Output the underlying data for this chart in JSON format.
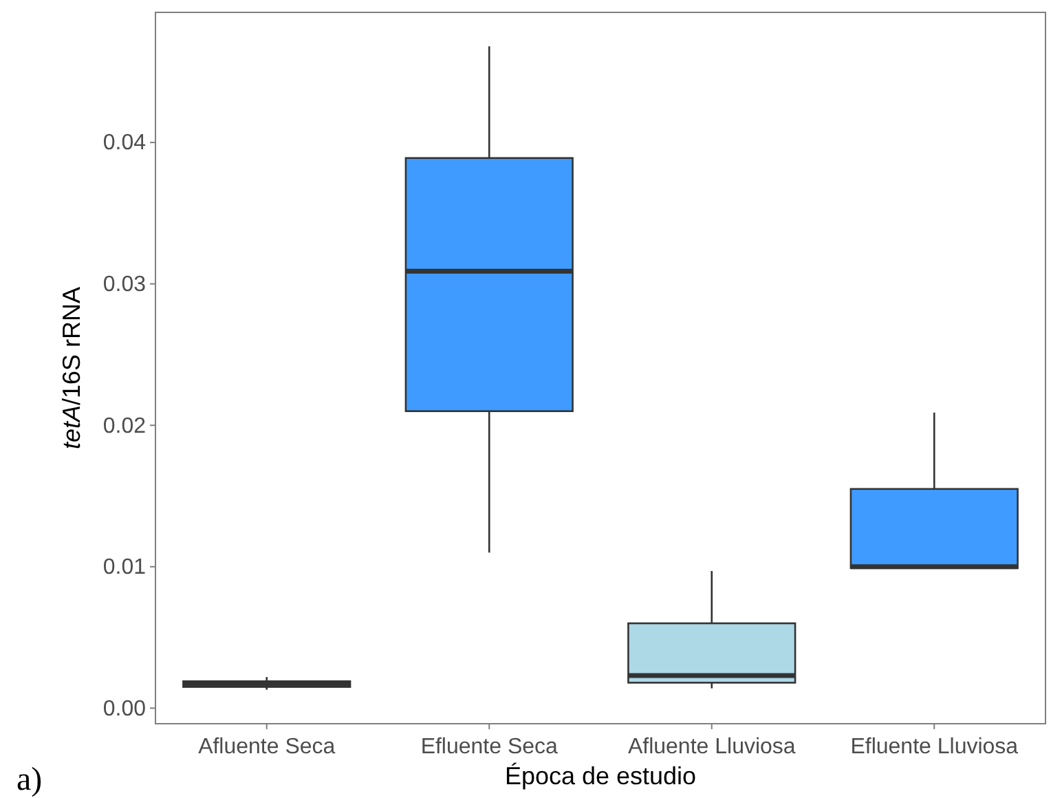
{
  "chart_data": {
    "type": "box",
    "xlabel": "Época de estudio",
    "ylabel": "tetA/16S rRNA",
    "categories": [
      "Afluente Seca",
      "Efluente Seca",
      "Afluente Lluviosa",
      "Efluente Lluviosa"
    ],
    "boxes": [
      {
        "low": 0.0013,
        "q1": 0.0015,
        "median": 0.0017,
        "q3": 0.0019,
        "high": 0.0022
      },
      {
        "low": 0.011,
        "q1": 0.021,
        "median": 0.0309,
        "q3": 0.0389,
        "high": 0.0468
      },
      {
        "low": 0.0014,
        "q1": 0.0018,
        "median": 0.0023,
        "q3": 0.006,
        "high": 0.0097
      },
      {
        "low": 0.0099,
        "q1": 0.0099,
        "median": 0.01,
        "q3": 0.0155,
        "high": 0.0209
      }
    ],
    "colors": [
      "#add8e6",
      "#3f9bff",
      "#add8e6",
      "#3f9bff"
    ],
    "ylim": [
      -0.0011,
      0.0492
    ],
    "yticks": [
      {
        "value": 0,
        "label": "0.00"
      },
      {
        "value": 0.01,
        "label": "0.01"
      },
      {
        "value": 0.02,
        "label": "0.02"
      },
      {
        "value": 0.03,
        "label": "0.03"
      },
      {
        "value": 0.04,
        "label": "0.04"
      }
    ],
    "annotations": [
      "a)"
    ]
  }
}
